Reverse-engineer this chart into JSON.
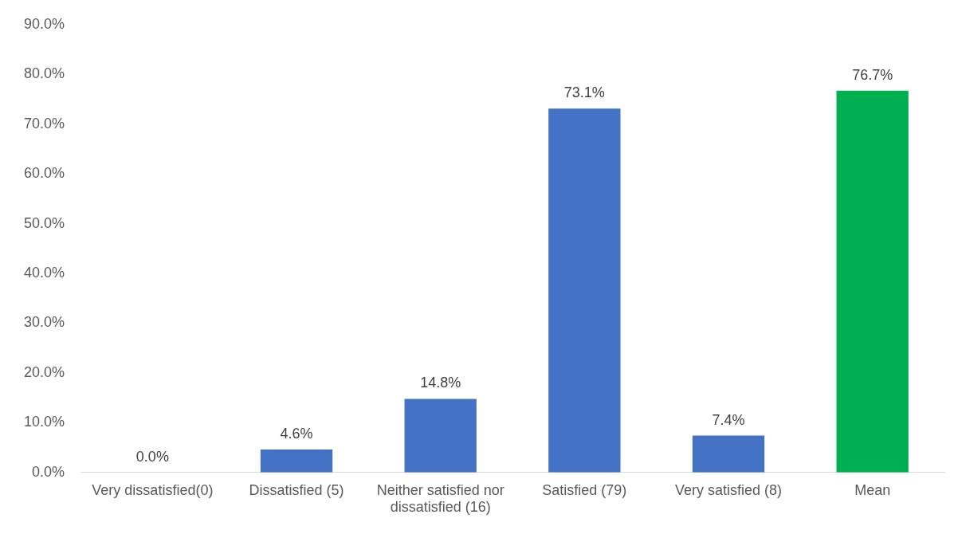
{
  "chart_data": {
    "type": "bar",
    "categories": [
      "Very dissatisfied(0)",
      "Dissatisfied (5)",
      "Neither satisfied nor dissatisfied (16)",
      "Satisfied (79)",
      "Very satisfied (8)",
      "Mean"
    ],
    "values": [
      0,
      4.6,
      14.8,
      73.1,
      7.4,
      76.7
    ],
    "colors": [
      "#4472c4",
      "#4472c4",
      "#4472c4",
      "#4472c4",
      "#4472c4",
      "#00b050"
    ],
    "value_labels": [
      "0.0%",
      "4.6%",
      "14.8%",
      "73.1%",
      "7.4%",
      "76.7%"
    ],
    "ylim": [
      0,
      90
    ],
    "yticks": [
      {
        "value": 0,
        "label": "0.0%"
      },
      {
        "value": 10,
        "label": "10.0%"
      },
      {
        "value": 20,
        "label": "20.0%"
      },
      {
        "value": 30,
        "label": "30.0%"
      },
      {
        "value": 40,
        "label": "40.0%"
      },
      {
        "value": 50,
        "label": "50.0%"
      },
      {
        "value": 60,
        "label": "60.0%"
      },
      {
        "value": 70,
        "label": "70.0%"
      },
      {
        "value": 80,
        "label": "80.0%"
      },
      {
        "value": 90,
        "label": "90.0%"
      }
    ],
    "grid": false,
    "legend": false
  }
}
